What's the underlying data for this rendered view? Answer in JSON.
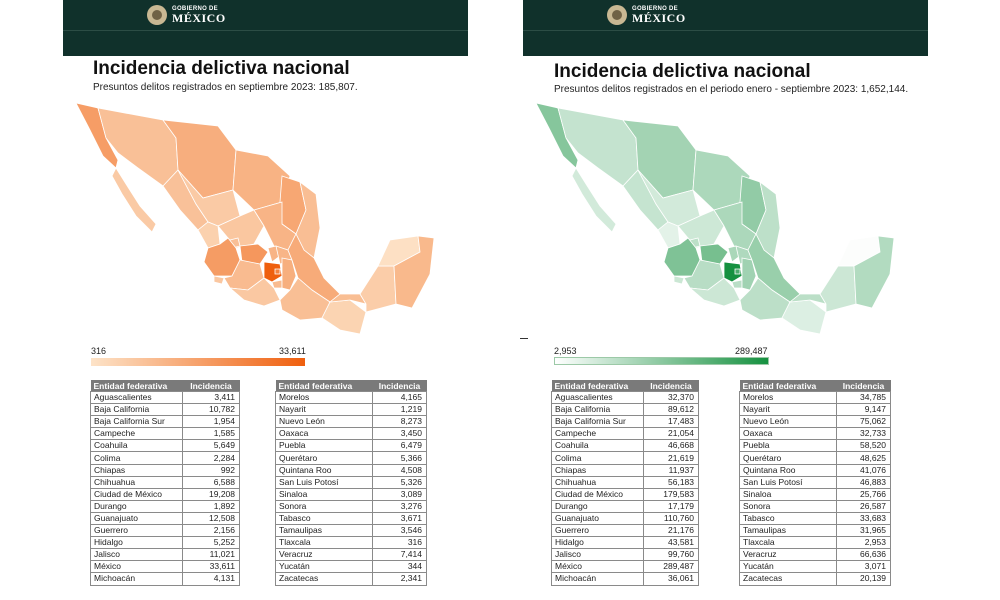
{
  "header": {
    "line1": "GOBIERNO DE",
    "line2": "MÉXICO"
  },
  "left": {
    "title": "Incidencia delictiva nacional",
    "subtitle": "Presuntos delitos registrados en septiembre 2023: 185,807.",
    "legend": {
      "min": "316",
      "max": "33,611"
    },
    "colors": {
      "low": "#fde3c8",
      "high": "#ef5f0e"
    },
    "table_headers": [
      "Entidad federativa",
      "Incidencia"
    ],
    "col1": [
      [
        "Aguascalientes",
        "3,411"
      ],
      [
        "Baja California",
        "10,782"
      ],
      [
        "Baja California Sur",
        "1,954"
      ],
      [
        "Campeche",
        "1,585"
      ],
      [
        "Coahuila",
        "5,649"
      ],
      [
        "Colima",
        "2,284"
      ],
      [
        "Chiapas",
        "992"
      ],
      [
        "Chihuahua",
        "6,588"
      ],
      [
        "Ciudad de México",
        "19,208"
      ],
      [
        "Durango",
        "1,892"
      ],
      [
        "Guanajuato",
        "12,508"
      ],
      [
        "Guerrero",
        "2,156"
      ],
      [
        "Hidalgo",
        "5,252"
      ],
      [
        "Jalisco",
        "11,021"
      ],
      [
        "México",
        "33,611"
      ],
      [
        "Michoacán",
        "4,131"
      ]
    ],
    "col2": [
      [
        "Morelos",
        "4,165"
      ],
      [
        "Nayarit",
        "1,219"
      ],
      [
        "Nuevo León",
        "8,273"
      ],
      [
        "Oaxaca",
        "3,450"
      ],
      [
        "Puebla",
        "6,479"
      ],
      [
        "Querétaro",
        "5,366"
      ],
      [
        "Quintana Roo",
        "4,508"
      ],
      [
        "San Luis Potosí",
        "5,326"
      ],
      [
        "Sinaloa",
        "3,089"
      ],
      [
        "Sonora",
        "3,276"
      ],
      [
        "Tabasco",
        "3,671"
      ],
      [
        "Tamaulipas",
        "3,546"
      ],
      [
        "Tlaxcala",
        "316"
      ],
      [
        "Veracruz",
        "7,414"
      ],
      [
        "Yucatán",
        "344"
      ],
      [
        "Zacatecas",
        "2,341"
      ]
    ]
  },
  "right": {
    "title": "Incidencia delictiva nacional",
    "subtitle": "Presuntos delitos registrados en el periodo enero - septiembre 2023: 1,652,144.",
    "legend": {
      "min": "2,953",
      "max": "289,487"
    },
    "colors": {
      "low": "#ffffff",
      "high": "#169140"
    },
    "table_headers": [
      "Entidad federativa",
      "Incidencia"
    ],
    "col1": [
      [
        "Aguascalientes",
        "32,370"
      ],
      [
        "Baja California",
        "89,612"
      ],
      [
        "Baja California Sur",
        "17,483"
      ],
      [
        "Campeche",
        "21,054"
      ],
      [
        "Coahuila",
        "46,668"
      ],
      [
        "Colima",
        "21,619"
      ],
      [
        "Chiapas",
        "11,937"
      ],
      [
        "Chihuahua",
        "56,183"
      ],
      [
        "Ciudad de México",
        "179,583"
      ],
      [
        "Durango",
        "17,179"
      ],
      [
        "Guanajuato",
        "110,760"
      ],
      [
        "Guerrero",
        "21,176"
      ],
      [
        "Hidalgo",
        "43,581"
      ],
      [
        "Jalisco",
        "99,760"
      ],
      [
        "México",
        "289,487"
      ],
      [
        "Michoacán",
        "36,061"
      ]
    ],
    "col2": [
      [
        "Morelos",
        "34,785"
      ],
      [
        "Nayarit",
        "9,147"
      ],
      [
        "Nuevo León",
        "75,062"
      ],
      [
        "Oaxaca",
        "32,733"
      ],
      [
        "Puebla",
        "58,520"
      ],
      [
        "Querétaro",
        "48,625"
      ],
      [
        "Quintana Roo",
        "41,076"
      ],
      [
        "San Luis Potosí",
        "46,883"
      ],
      [
        "Sinaloa",
        "25,766"
      ],
      [
        "Sonora",
        "26,587"
      ],
      [
        "Tabasco",
        "33,683"
      ],
      [
        "Tamaulipas",
        "31,965"
      ],
      [
        "Tlaxcala",
        "2,953"
      ],
      [
        "Veracruz",
        "66,636"
      ],
      [
        "Yucatán",
        "3,071"
      ],
      [
        "Zacatecas",
        "20,139"
      ]
    ]
  }
}
